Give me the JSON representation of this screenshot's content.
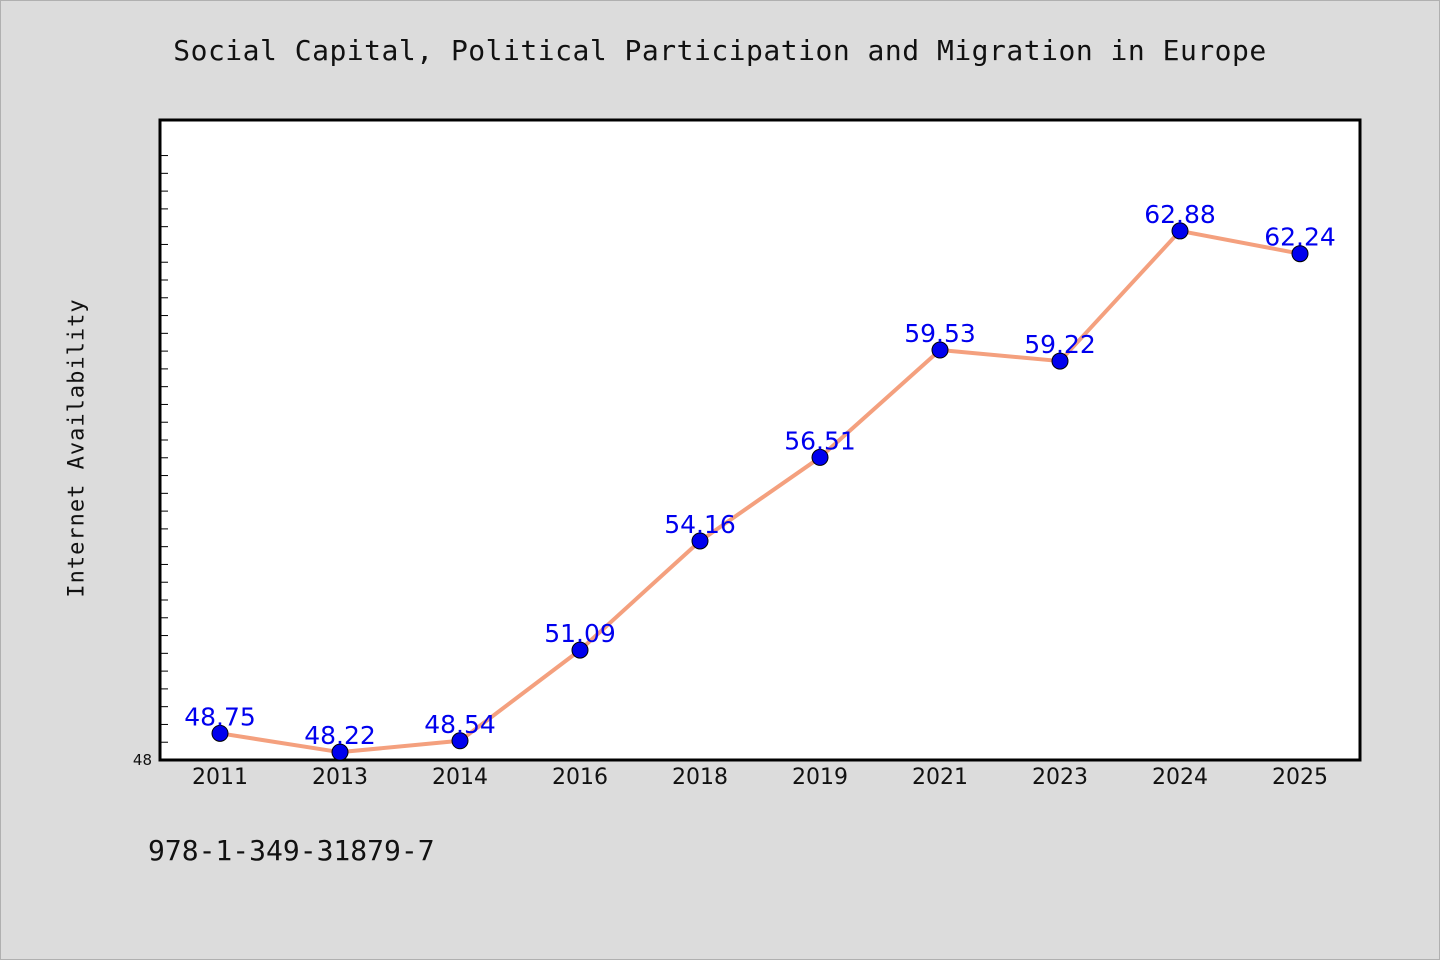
{
  "title": "Social Capital, Political Participation and Migration in Europe",
  "footnote": "978-1-349-31879-7",
  "colors": {
    "background": "#dcdcdc",
    "plot_background": "#ffffff",
    "line": "#f4a07e",
    "marker": "#0000ee",
    "data_label": "#0000ee"
  },
  "chart_data": {
    "type": "line",
    "title": "Social Capital, Political Participation and Migration in Europe",
    "xlabel": "",
    "ylabel": "Internet Availability",
    "categories": [
      "2011",
      "2013",
      "2014",
      "2016",
      "2018",
      "2019",
      "2021",
      "2023",
      "2024",
      "2025"
    ],
    "series": [
      {
        "values": [
          48.75,
          48.22,
          48.54,
          51.09,
          54.16,
          56.51,
          59.53,
          59.22,
          62.88,
          62.24
        ],
        "labels": [
          "48.75",
          "48.22",
          "48.54",
          "51.09",
          "54.16",
          "56.51",
          "59.53",
          "59.22",
          "62.88",
          "62.24"
        ]
      }
    ],
    "ylim": [
      48,
      66
    ],
    "y_tick_labels": [
      "48"
    ],
    "grid": false,
    "legend": "none"
  }
}
